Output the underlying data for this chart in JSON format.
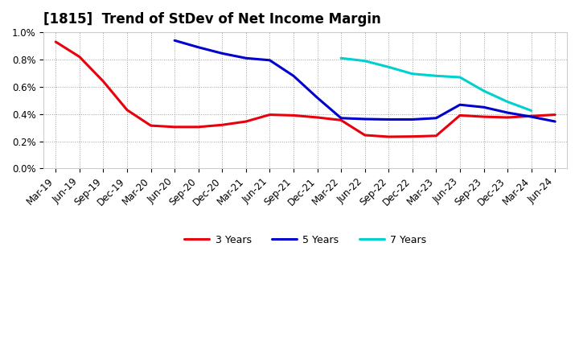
{
  "title": "[1815]  Trend of StDev of Net Income Margin",
  "x_labels": [
    "Mar-19",
    "Jun-19",
    "Sep-19",
    "Dec-19",
    "Mar-20",
    "Jun-20",
    "Sep-20",
    "Dec-20",
    "Mar-21",
    "Jun-21",
    "Sep-21",
    "Dec-21",
    "Mar-22",
    "Jun-22",
    "Sep-22",
    "Dec-22",
    "Mar-23",
    "Jun-23",
    "Sep-23",
    "Dec-23",
    "Mar-24",
    "Jun-24"
  ],
  "series_3y": [
    0.93,
    0.82,
    0.64,
    0.43,
    0.315,
    0.305,
    0.305,
    0.32,
    0.345,
    0.395,
    0.39,
    0.375,
    0.355,
    0.245,
    0.233,
    0.235,
    0.24,
    0.39,
    0.38,
    0.375,
    0.385,
    0.395
  ],
  "series_5y": [
    null,
    null,
    null,
    null,
    null,
    0.94,
    0.89,
    0.845,
    0.81,
    0.795,
    0.68,
    0.52,
    0.37,
    0.363,
    0.36,
    0.36,
    0.37,
    0.468,
    0.45,
    0.41,
    0.38,
    0.345
  ],
  "series_7y": [
    null,
    null,
    null,
    null,
    null,
    null,
    null,
    null,
    null,
    null,
    null,
    null,
    0.81,
    0.79,
    0.745,
    0.695,
    0.68,
    0.67,
    0.57,
    0.49,
    0.425,
    null
  ],
  "series_10y": [
    null,
    null,
    null,
    null,
    null,
    null,
    null,
    null,
    null,
    null,
    null,
    null,
    null,
    null,
    null,
    null,
    null,
    null,
    null,
    null,
    null,
    null
  ],
  "color_3y": "#e8000d",
  "color_5y": "#0000cd",
  "color_7y": "#00d0d0",
  "color_10y": "#008000",
  "ylim": [
    0.0,
    1.0
  ],
  "ylabel_ticks": [
    0.0,
    0.2,
    0.4,
    0.6,
    0.8,
    1.0
  ],
  "background_color": "#ffffff",
  "plot_bg_color": "#ffffff",
  "grid_color": "#888888",
  "linewidth": 2.2,
  "title_fontsize": 12,
  "tick_fontsize": 8.5,
  "legend_fontsize": 9
}
